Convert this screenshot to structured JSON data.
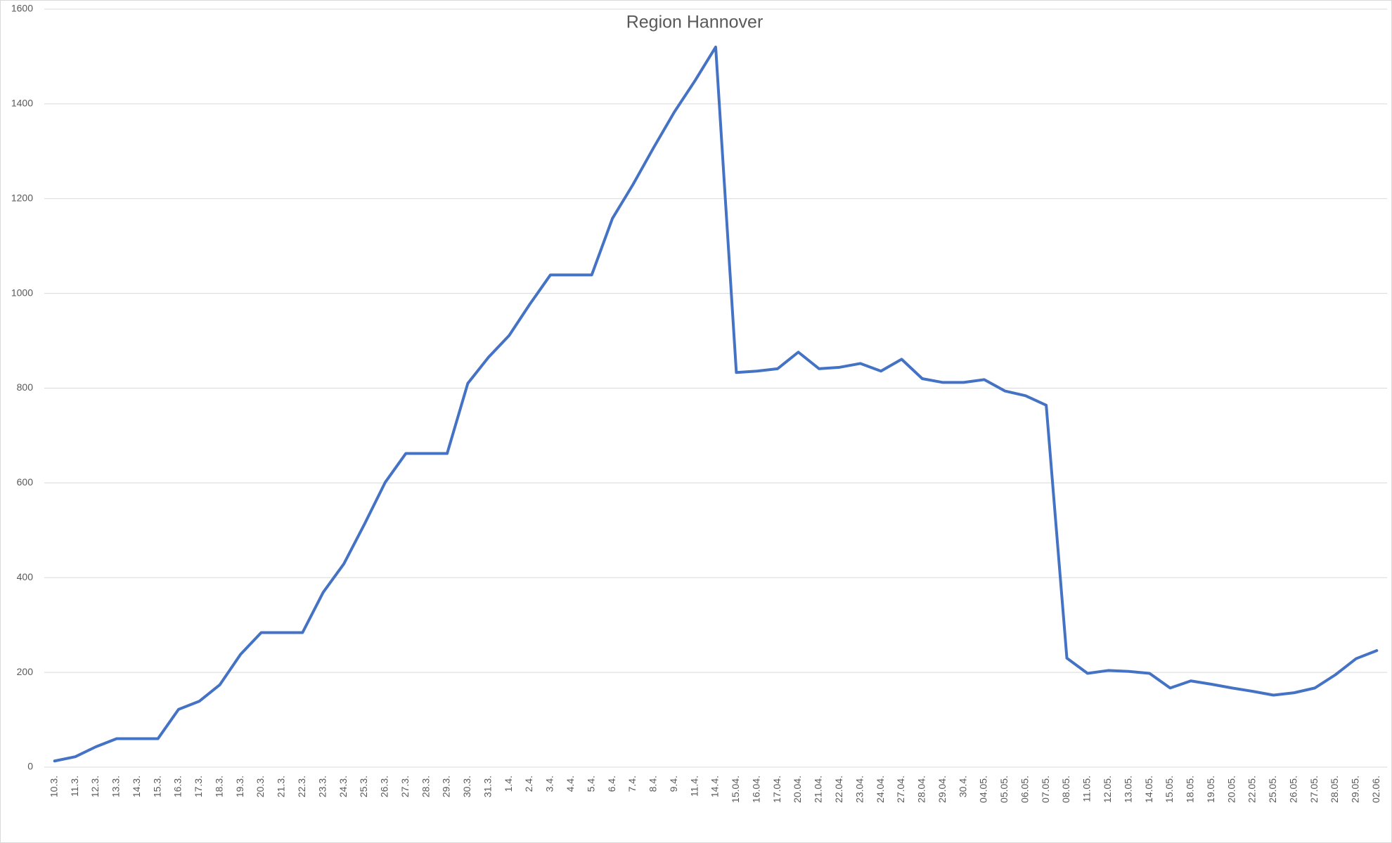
{
  "chart_data": {
    "type": "line",
    "title": "Region Hannover",
    "categories": [
      "10.3.",
      "11.3.",
      "12.3.",
      "13.3.",
      "14.3.",
      "15.3.",
      "16.3.",
      "17.3.",
      "18.3.",
      "19.3.",
      "20.3.",
      "21.3.",
      "22.3.",
      "23.3.",
      "24.3.",
      "25.3.",
      "26.3.",
      "27.3.",
      "28.3.",
      "29.3.",
      "30.3.",
      "31.3.",
      "1.4.",
      "2.4.",
      "3.4.",
      "4.4.",
      "5.4.",
      "6.4.",
      "7.4.",
      "8.4.",
      "9.4.",
      "11.4.",
      "14.4.",
      "15.04.",
      "16.04.",
      "17.04.",
      "20.04.",
      "21.04.",
      "22.04.",
      "23.04.",
      "24.04.",
      "27.04.",
      "28.04.",
      "29.04.",
      "30.4.",
      "04.05.",
      "05.05.",
      "06.05.",
      "07.05.",
      "08.05.",
      "11.05.",
      "12.05.",
      "13.05.",
      "14.05.",
      "15.05.",
      "18.05.",
      "19.05.",
      "20.05.",
      "22.05.",
      "25.05.",
      "26.05.",
      "27.05.",
      "28.05.",
      "29.05.",
      "02.06."
    ],
    "series": [
      {
        "name": "Region Hannover",
        "color": "#4472c4",
        "values": [
          13,
          22,
          43,
          60,
          60,
          60,
          122,
          139,
          174,
          238,
          284,
          284,
          284,
          369,
          429,
          513,
          601,
          662,
          662,
          662,
          810,
          865,
          911,
          977,
          1039,
          1039,
          1039,
          1158,
          1230,
          1308,
          1383,
          1449,
          1520,
          833,
          836,
          841,
          876,
          841,
          844,
          852,
          836,
          861,
          820,
          812,
          812,
          818,
          794,
          784,
          764,
          230,
          198,
          204,
          202,
          198,
          167,
          182,
          175,
          167,
          160,
          152,
          157,
          167,
          195,
          229,
          246
        ]
      }
    ],
    "ylim": [
      0,
      1600
    ],
    "yticks": [
      0,
      200,
      400,
      600,
      800,
      1000,
      1200,
      1400,
      1600
    ],
    "grid": true
  }
}
